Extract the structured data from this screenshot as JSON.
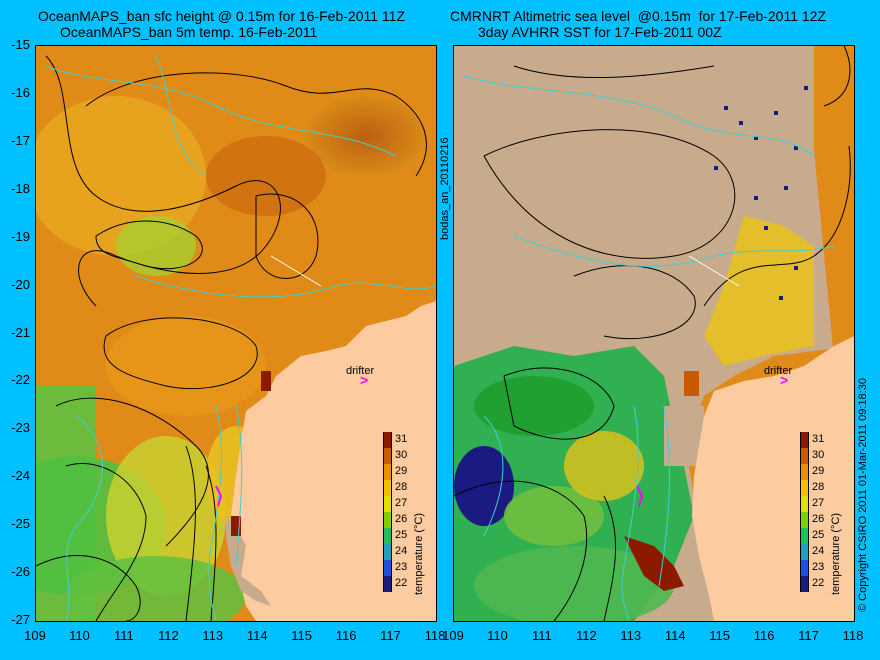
{
  "left_panel": {
    "title_line1": "OceanMAPS_ban sfc height @ 0.15m for 16-Feb-2011 11Z",
    "title_line2": "OceanMAPS_ban 5m temp. 16-Feb-2011"
  },
  "right_panel": {
    "title_line1": "CMRNRT Altimetric sea level  @0.15m  for 17-Feb-2011 12Z",
    "title_line2": "3day AVHRR SST for 17-Feb-2011 00Z"
  },
  "map": {
    "lat_ticks": [
      "-15",
      "-16",
      "-17",
      "-18",
      "-19",
      "-20",
      "-21",
      "-22",
      "-23",
      "-24",
      "-25",
      "-26",
      "-27"
    ],
    "lon_ticks": [
      "109",
      "110",
      "111",
      "112",
      "113",
      "114",
      "115",
      "116",
      "117",
      "118"
    ],
    "drifter_label": "drifter",
    "drifter_arrow": ">",
    "left_side_text": "bodas_an_20110216",
    "right_side_text": "© Copyright CSIRO 2011   01-Mar-2011 09:18:30",
    "colors": {
      "land": "#fccca0",
      "no_data": "#c8aa8c",
      "background": "#00c0ff",
      "contour": "#000000",
      "isobath": "#40d0d0"
    }
  },
  "colorbar": {
    "title": "temperature (°C)",
    "labels": [
      "31",
      "30",
      "29",
      "28",
      "27",
      "26",
      "25",
      "24",
      "23",
      "22"
    ],
    "colors": [
      "#8b1a00",
      "#c85a00",
      "#e89000",
      "#f0c000",
      "#e0e000",
      "#80d000",
      "#20c060",
      "#20a0c0",
      "#2050e0",
      "#1a1a80"
    ]
  }
}
